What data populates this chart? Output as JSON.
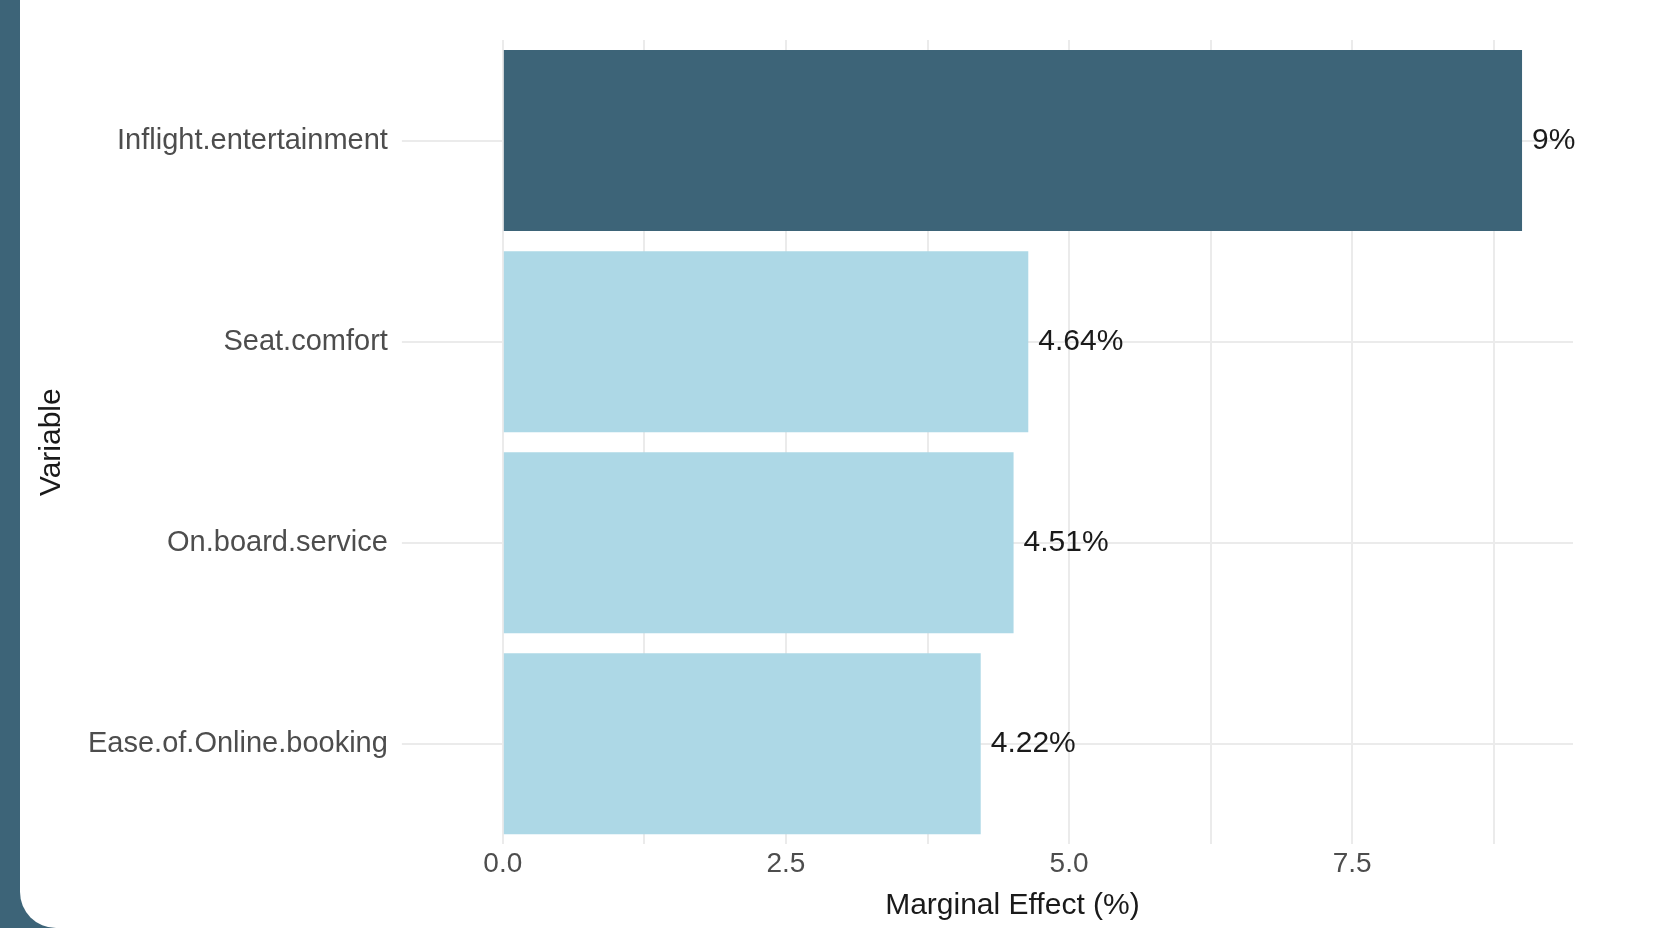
{
  "chart_data": {
    "type": "bar",
    "orientation": "horizontal",
    "xlabel": "Marginal Effect (%)",
    "ylabel": "Variable",
    "categories": [
      "Inflight.entertainment",
      "Seat.comfort",
      "On.board.service",
      "Ease.of.Online.booking"
    ],
    "values": [
      9,
      4.64,
      4.51,
      4.22
    ],
    "colors": [
      "#3d6478",
      "#add8e6",
      "#add8e6",
      "#add8e6"
    ],
    "value_labels": [
      "9%",
      "4.64%",
      "4.51%",
      "4.22%"
    ],
    "xlim": [
      -0.45,
      9.45
    ],
    "xticks": [
      {
        "value": 0,
        "label": "0.0"
      },
      {
        "value": 1.25,
        "label": null
      },
      {
        "value": 2.5,
        "label": "2.5"
      },
      {
        "value": 3.75,
        "label": null
      },
      {
        "value": 5,
        "label": "5.0"
      },
      {
        "value": 6.25,
        "label": null
      },
      {
        "value": 7.5,
        "label": "7.5"
      },
      {
        "value": 8.75,
        "label": null
      }
    ],
    "grid": true,
    "legend": false
  }
}
